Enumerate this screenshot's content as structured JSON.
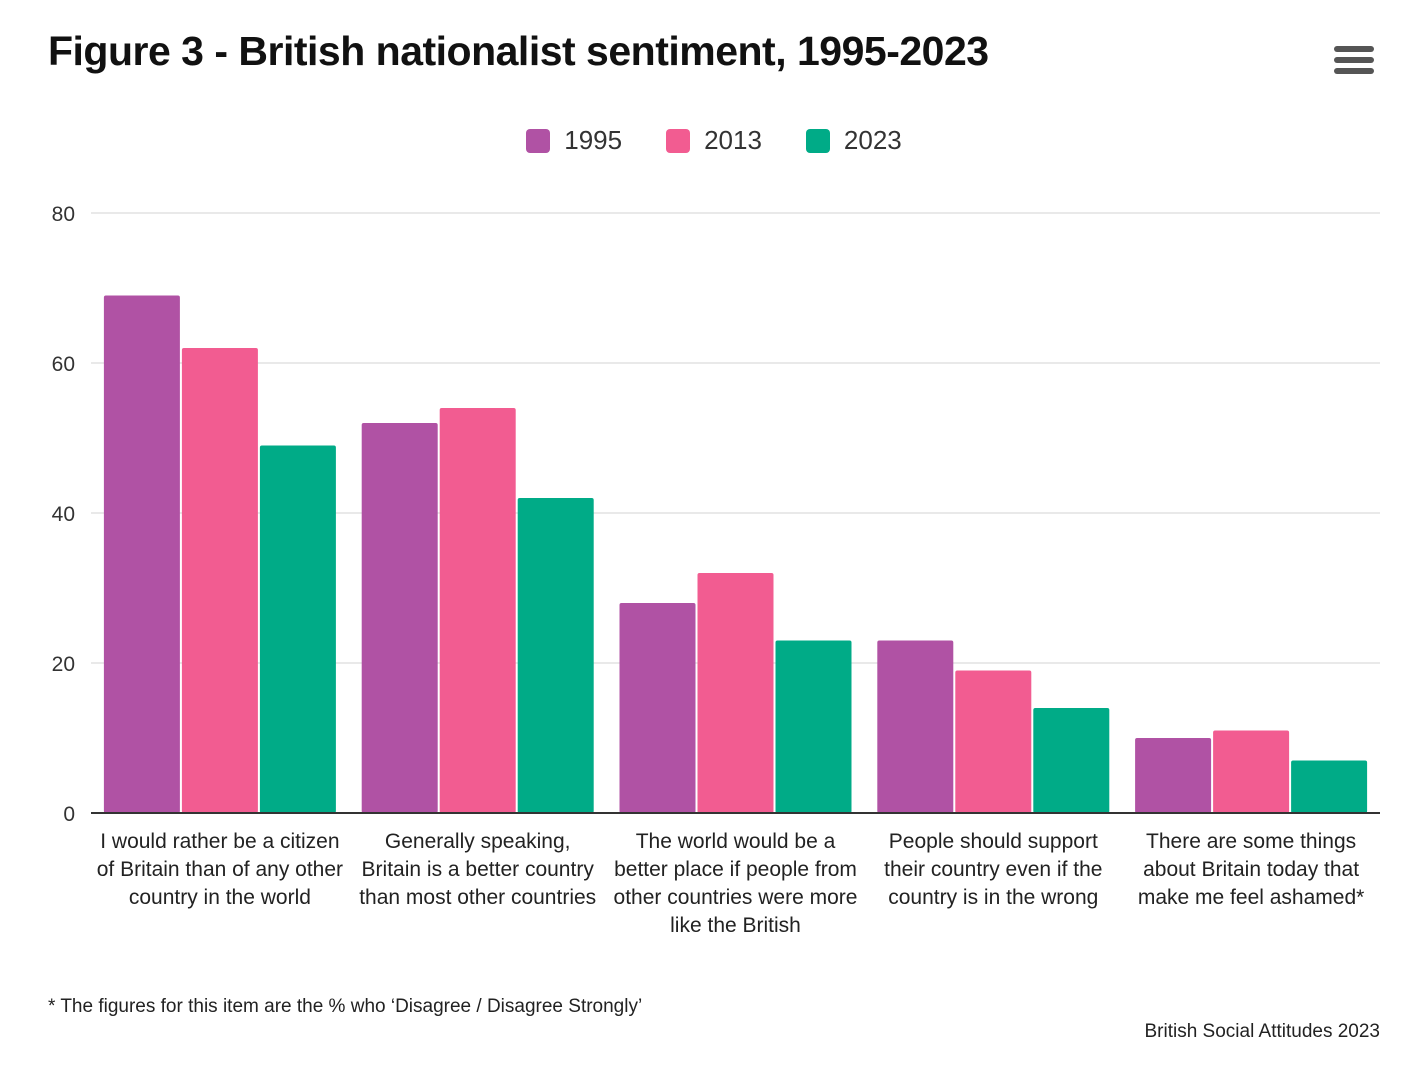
{
  "chart_data": {
    "type": "bar",
    "title": "Figure 3 - British nationalist sentiment, 1995-2023",
    "categories": [
      "I would rather be a citizen of Britain than of any other country in the world",
      "Generally speaking, Britain is a better country than most other countries",
      "The world would be a better place if people from other countries were more like the British",
      "People should support their country even if the country is in the wrong",
      "There are some things about Britain today that make me feel ashamed*"
    ],
    "series": [
      {
        "name": "1995",
        "color": "#B052A4",
        "values": [
          69,
          52,
          28,
          23,
          10
        ]
      },
      {
        "name": "2013",
        "color": "#F25C91",
        "values": [
          62,
          54,
          32,
          19,
          11
        ]
      },
      {
        "name": "2023",
        "color": "#00AB87",
        "values": [
          49,
          42,
          23,
          14,
          7
        ]
      }
    ],
    "ylim": [
      0,
      80
    ],
    "yticks": [
      0,
      20,
      40,
      60,
      80
    ],
    "grid": true,
    "legend_position": "top-center",
    "footnote": "* The figures for this item are the % who ‘Disagree / Disagree Strongly’",
    "credit": "British Social Attitudes 2023"
  },
  "menu_icon": "hamburger-menu-icon"
}
